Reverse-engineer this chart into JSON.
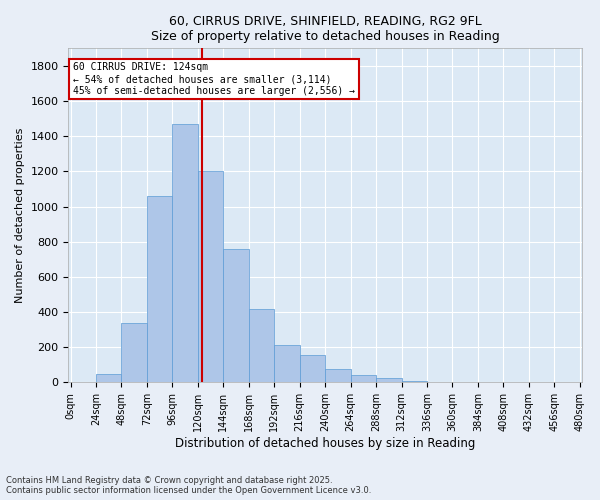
{
  "title_line1": "60, CIRRUS DRIVE, SHINFIELD, READING, RG2 9FL",
  "title_line2": "Size of property relative to detached houses in Reading",
  "xlabel": "Distribution of detached houses by size in Reading",
  "ylabel": "Number of detached properties",
  "property_size": 124,
  "annotation_line1": "60 CIRRUS DRIVE: 124sqm",
  "annotation_line2": "← 54% of detached houses are smaller (3,114)",
  "annotation_line3": "45% of semi-detached houses are larger (2,556) →",
  "vline_x": 124,
  "bar_edges": [
    0,
    24,
    48,
    72,
    96,
    120,
    144,
    168,
    192,
    216,
    240,
    264,
    288,
    312,
    336,
    360,
    384,
    408,
    432,
    456,
    480
  ],
  "bar_heights": [
    5,
    50,
    340,
    1060,
    1470,
    1200,
    760,
    420,
    215,
    155,
    75,
    45,
    25,
    10,
    0,
    0,
    0,
    0,
    0,
    0
  ],
  "bar_color": "#aec6e8",
  "bar_edgecolor": "#5b9bd5",
  "vline_color": "#cc0000",
  "annotation_box_edgecolor": "#cc0000",
  "fig_background": "#e8eef7",
  "plot_background": "#dce9f5",
  "grid_color": "#ffffff",
  "ylim": [
    0,
    1900
  ],
  "yticks": [
    0,
    200,
    400,
    600,
    800,
    1000,
    1200,
    1400,
    1600,
    1800
  ],
  "footnote": "Contains HM Land Registry data © Crown copyright and database right 2025.\nContains public sector information licensed under the Open Government Licence v3.0."
}
